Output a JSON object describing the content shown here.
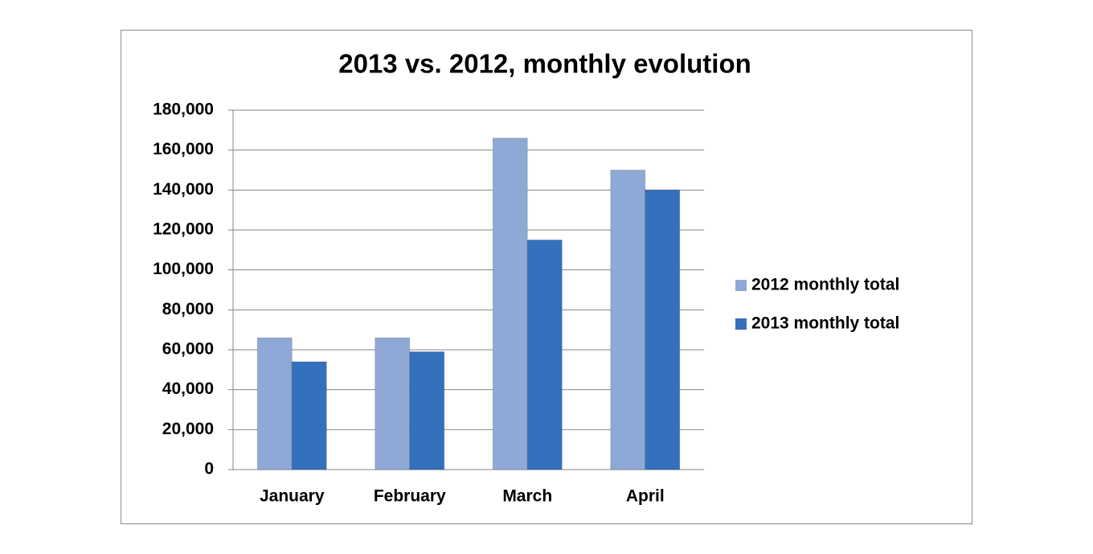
{
  "chart_data": {
    "type": "bar",
    "title": "2013 vs. 2012, monthly evolution",
    "categories": [
      "January",
      "February",
      "March",
      "April"
    ],
    "series": [
      {
        "name": "2012 monthly total",
        "color": "#8fa9d6",
        "values": [
          66000,
          66000,
          166000,
          150000
        ]
      },
      {
        "name": "2013 monthly total",
        "color": "#3570bd",
        "values": [
          54000,
          59000,
          115000,
          140000
        ]
      }
    ],
    "ylim": [
      0,
      180000
    ],
    "yticks": [
      0,
      {
        "value": 20000,
        "label": "20,000"
      },
      {
        "value": 40000,
        "label": "40,000"
      },
      {
        "value": 60000,
        "label": "60,000"
      },
      {
        "value": 80000,
        "label": "80,000"
      },
      {
        "value": 100000,
        "label": "100,000"
      },
      {
        "value": 120000,
        "label": "120,000"
      },
      {
        "value": 140000,
        "label": "140,000"
      },
      {
        "value": 160000,
        "label": "160,000"
      },
      {
        "value": 180000,
        "label": "180,000"
      }
    ],
    "grid": true,
    "legend": "right"
  }
}
